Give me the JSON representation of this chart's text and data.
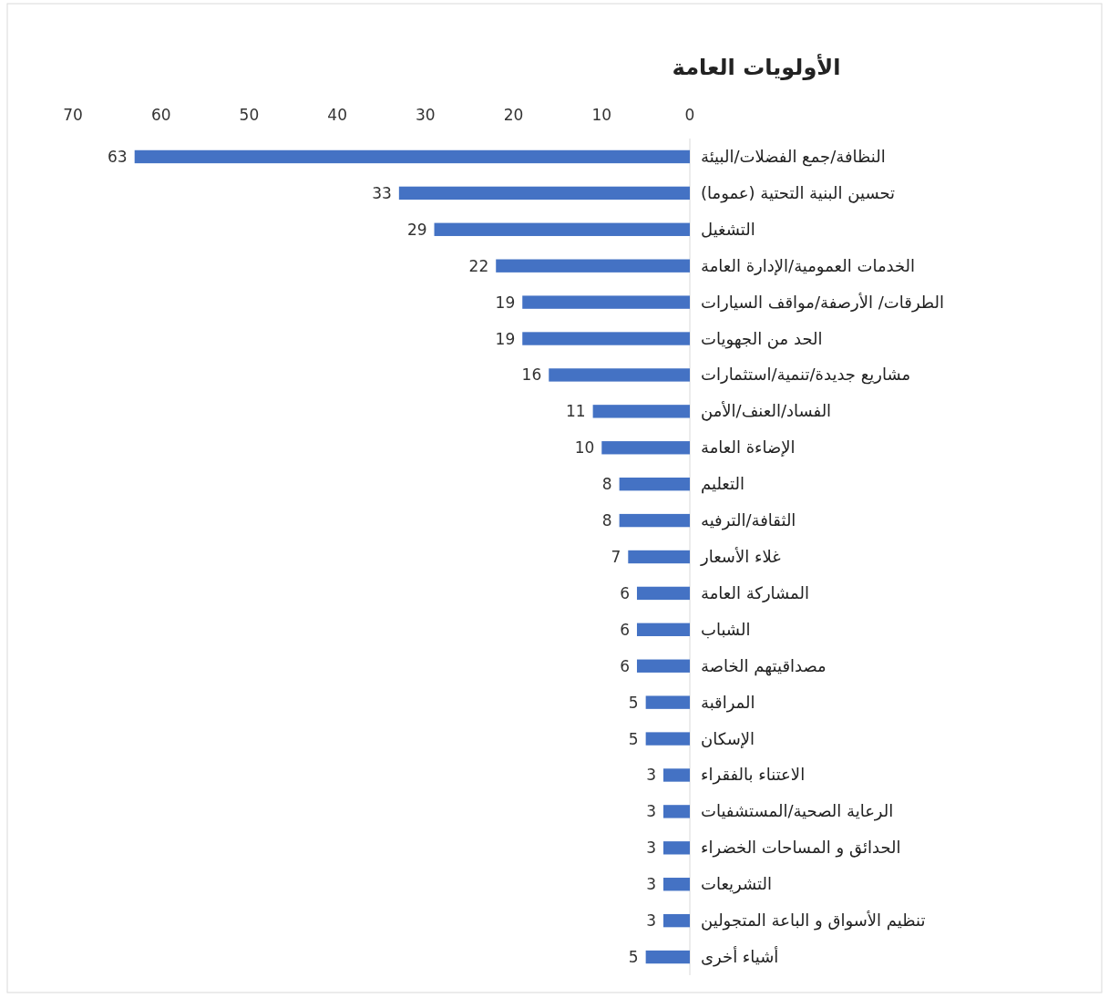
{
  "chart_data": {
    "type": "bar",
    "orientation": "horizontal",
    "title": "الأولويات العامة",
    "categories": [
      "النظافة/جمع الفضلات/البيئة",
      "تحسين البنية التحتية (عموما)",
      "التشغيل",
      "الخدمات العمومية/الإدارة العامة",
      "الطرقات/ الأرصفة/مواقف السيارات",
      "الحد من الجهويات",
      "مشاريع جديدة/تنمية/استثمارات",
      "الفساد/العنف/الأمن",
      "الإضاءة العامة",
      "التعليم",
      "الثقافة/الترفيه",
      "غلاء الأسعار",
      "المشاركة العامة",
      "الشباب",
      "مصداقيتهم الخاصة",
      "المراقبة",
      "الإسكان",
      "الاعتناء بالفقراء",
      "الرعاية الصحية/المستشفيات",
      "الحدائق و المساحات الخضراء",
      "التشريعات",
      "تنظيم الأسواق و الباعة المتجولين",
      "أشياء أخرى"
    ],
    "values": [
      63,
      33,
      29,
      22,
      19,
      19,
      16,
      11,
      10,
      8,
      8,
      7,
      6,
      6,
      6,
      5,
      5,
      3,
      3,
      3,
      3,
      3,
      5
    ],
    "color": "#4472c4",
    "xlim": [
      70,
      0
    ],
    "xticks": [
      70,
      60,
      50,
      40,
      30,
      20,
      10,
      0
    ],
    "data_labels": true
  }
}
